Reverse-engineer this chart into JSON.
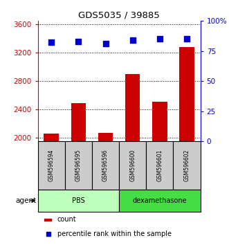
{
  "title": "GDS5035 / 39885",
  "samples": [
    "GSM596594",
    "GSM596595",
    "GSM596596",
    "GSM596600",
    "GSM596601",
    "GSM596602"
  ],
  "counts": [
    2060,
    2490,
    2075,
    2900,
    2510,
    3280
  ],
  "percentiles": [
    82,
    83,
    81,
    84,
    85,
    85
  ],
  "ylim_left": [
    1950,
    3650
  ],
  "ylim_right": [
    0,
    100
  ],
  "yticks_left": [
    2000,
    2400,
    2800,
    3200,
    3600
  ],
  "yticks_right": [
    0,
    25,
    50,
    75,
    100
  ],
  "bar_color": "#cc0000",
  "dot_color": "#0000cc",
  "groups": [
    {
      "label": "PBS",
      "color": "#bbffbb"
    },
    {
      "label": "dexamethasone",
      "color": "#44dd44"
    }
  ],
  "agent_label": "agent",
  "legend_count": "count",
  "legend_percentile": "percentile rank within the sample",
  "left_axis_color": "#cc0000",
  "right_axis_color": "#0000cc",
  "tick_label_bg": "#cccccc",
  "n_pbs": 3,
  "n_dex": 3
}
